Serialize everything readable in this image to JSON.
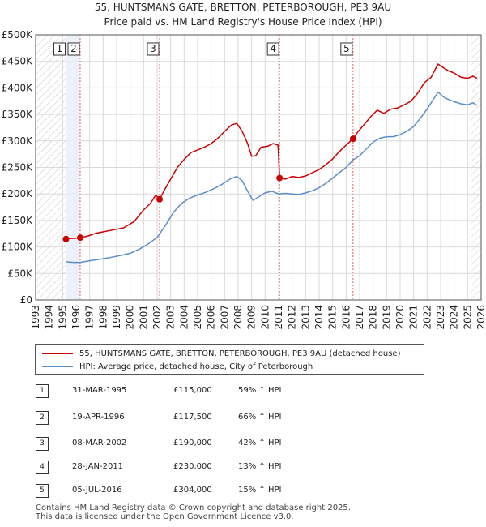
{
  "header": {
    "title": "55, HUNTSMANS GATE, BRETTON, PETERBOROUGH, PE3 9AU",
    "subtitle": "Price paid vs. HM Land Registry's House Price Index (HPI)"
  },
  "chart_data": {
    "type": "line",
    "title": "Price paid vs. HM Land Registry's House Price Index (HPI)",
    "xlim": [
      1993,
      2026
    ],
    "ylim": [
      0,
      500000
    ],
    "x_ticks": [
      1993,
      1994,
      1995,
      1996,
      1997,
      1998,
      1999,
      2000,
      2001,
      2002,
      2003,
      2004,
      2005,
      2006,
      2007,
      2008,
      2009,
      2010,
      2011,
      2012,
      2013,
      2014,
      2015,
      2016,
      2017,
      2018,
      2019,
      2020,
      2021,
      2022,
      2023,
      2024,
      2025,
      2026
    ],
    "y_ticks": [
      0,
      50000,
      100000,
      150000,
      200000,
      250000,
      300000,
      350000,
      400000,
      450000,
      500000
    ],
    "y_tick_labels": [
      "£0",
      "£50K",
      "£100K",
      "£150K",
      "£200K",
      "£250K",
      "£300K",
      "£350K",
      "£400K",
      "£450K",
      "£500K"
    ],
    "hatch_ranges": [
      [
        1993,
        1995.2
      ],
      [
        2025.2,
        2026
      ]
    ],
    "shade_range": [
      1995.25,
      1996.3
    ],
    "series": [
      {
        "name": "55, HUNTSMANS GATE, BRETTON, PETERBOROUGH, PE3 9AU (detached house)",
        "color": "#cc0000",
        "points": [
          [
            1995.25,
            115000
          ],
          [
            1995.6,
            116000
          ],
          [
            1996.0,
            116500
          ],
          [
            1996.3,
            117500
          ],
          [
            1996.8,
            120000
          ],
          [
            1997.5,
            126000
          ],
          [
            1998.5,
            131000
          ],
          [
            1999.5,
            136000
          ],
          [
            2000.3,
            148000
          ],
          [
            2001.0,
            170000
          ],
          [
            2001.5,
            182000
          ],
          [
            2001.9,
            198000
          ],
          [
            2002.18,
            190000
          ],
          [
            2002.6,
            210000
          ],
          [
            2003.0,
            228000
          ],
          [
            2003.5,
            250000
          ],
          [
            2004.0,
            265000
          ],
          [
            2004.5,
            278000
          ],
          [
            2005.0,
            283000
          ],
          [
            2005.5,
            288000
          ],
          [
            2006.0,
            295000
          ],
          [
            2006.5,
            305000
          ],
          [
            2007.0,
            318000
          ],
          [
            2007.5,
            330000
          ],
          [
            2007.9,
            333000
          ],
          [
            2008.3,
            318000
          ],
          [
            2008.7,
            295000
          ],
          [
            2009.0,
            271000
          ],
          [
            2009.3,
            272000
          ],
          [
            2009.7,
            288000
          ],
          [
            2010.2,
            290000
          ],
          [
            2010.6,
            295000
          ],
          [
            2010.95,
            292000
          ],
          [
            2011.0,
            270000
          ],
          [
            2011.07,
            230000
          ],
          [
            2011.5,
            228000
          ],
          [
            2012.0,
            233000
          ],
          [
            2012.5,
            231000
          ],
          [
            2013.0,
            234000
          ],
          [
            2013.5,
            240000
          ],
          [
            2014.0,
            246000
          ],
          [
            2014.5,
            255000
          ],
          [
            2015.0,
            266000
          ],
          [
            2015.5,
            280000
          ],
          [
            2016.0,
            292000
          ],
          [
            2016.51,
            304000
          ],
          [
            2016.9,
            318000
          ],
          [
            2017.3,
            330000
          ],
          [
            2017.8,
            345000
          ],
          [
            2018.3,
            358000
          ],
          [
            2018.8,
            352000
          ],
          [
            2019.3,
            360000
          ],
          [
            2019.8,
            362000
          ],
          [
            2020.3,
            368000
          ],
          [
            2020.8,
            375000
          ],
          [
            2021.3,
            390000
          ],
          [
            2021.8,
            410000
          ],
          [
            2022.3,
            420000
          ],
          [
            2022.8,
            445000
          ],
          [
            2023.2,
            438000
          ],
          [
            2023.6,
            432000
          ],
          [
            2024.0,
            428000
          ],
          [
            2024.5,
            420000
          ],
          [
            2025.0,
            418000
          ],
          [
            2025.4,
            422000
          ],
          [
            2025.7,
            418000
          ]
        ]
      },
      {
        "name": "HPI: Average price, detached house, City of Peterborough",
        "color": "#5b8ec9",
        "points": [
          [
            1995.25,
            72000
          ],
          [
            1995.8,
            71000
          ],
          [
            1996.3,
            71000
          ],
          [
            1997.0,
            74000
          ],
          [
            1997.8,
            77000
          ],
          [
            1998.5,
            80000
          ],
          [
            1999.3,
            84000
          ],
          [
            2000.0,
            88000
          ],
          [
            2000.7,
            96000
          ],
          [
            2001.3,
            105000
          ],
          [
            2002.0,
            118000
          ],
          [
            2002.6,
            140000
          ],
          [
            2003.2,
            165000
          ],
          [
            2003.8,
            182000
          ],
          [
            2004.4,
            192000
          ],
          [
            2005.0,
            198000
          ],
          [
            2005.6,
            203000
          ],
          [
            2006.2,
            210000
          ],
          [
            2006.8,
            218000
          ],
          [
            2007.4,
            228000
          ],
          [
            2007.9,
            233000
          ],
          [
            2008.3,
            225000
          ],
          [
            2008.7,
            205000
          ],
          [
            2009.1,
            188000
          ],
          [
            2009.5,
            194000
          ],
          [
            2010.0,
            202000
          ],
          [
            2010.5,
            205000
          ],
          [
            2011.0,
            200000
          ],
          [
            2011.5,
            201000
          ],
          [
            2012.0,
            200000
          ],
          [
            2012.5,
            199000
          ],
          [
            2013.0,
            202000
          ],
          [
            2013.5,
            206000
          ],
          [
            2014.0,
            212000
          ],
          [
            2014.5,
            220000
          ],
          [
            2015.0,
            230000
          ],
          [
            2015.5,
            240000
          ],
          [
            2016.0,
            250000
          ],
          [
            2016.51,
            264000
          ],
          [
            2017.0,
            272000
          ],
          [
            2017.5,
            285000
          ],
          [
            2018.0,
            298000
          ],
          [
            2018.5,
            305000
          ],
          [
            2019.0,
            308000
          ],
          [
            2019.5,
            308000
          ],
          [
            2020.0,
            312000
          ],
          [
            2020.5,
            318000
          ],
          [
            2021.0,
            327000
          ],
          [
            2021.5,
            343000
          ],
          [
            2022.0,
            360000
          ],
          [
            2022.5,
            380000
          ],
          [
            2022.8,
            392000
          ],
          [
            2023.2,
            383000
          ],
          [
            2023.6,
            378000
          ],
          [
            2024.0,
            374000
          ],
          [
            2024.5,
            370000
          ],
          [
            2025.0,
            368000
          ],
          [
            2025.4,
            372000
          ],
          [
            2025.7,
            367000
          ]
        ]
      }
    ],
    "sales": [
      {
        "label": "1",
        "x": 1995.25,
        "value": 115000
      },
      {
        "label": "2",
        "x": 1996.3,
        "value": 117500
      },
      {
        "label": "3",
        "x": 2002.18,
        "value": 190000
      },
      {
        "label": "4",
        "x": 2011.07,
        "value": 230000
      },
      {
        "label": "5",
        "x": 2016.51,
        "value": 304000
      }
    ]
  },
  "legend": {
    "line1": "55, HUNTSMANS GATE, BRETTON, PETERBOROUGH, PE3 9AU (detached house)",
    "line2": "HPI: Average price, detached house, City of Peterborough"
  },
  "sales_table": [
    {
      "label": "1",
      "date": "31-MAR-1995",
      "price": "£115,000",
      "hpi": "59% ↑ HPI"
    },
    {
      "label": "2",
      "date": "19-APR-1996",
      "price": "£117,500",
      "hpi": "66% ↑ HPI"
    },
    {
      "label": "3",
      "date": "08-MAR-2002",
      "price": "£190,000",
      "hpi": "42% ↑ HPI"
    },
    {
      "label": "4",
      "date": "28-JAN-2011",
      "price": "£230,000",
      "hpi": "13% ↑ HPI"
    },
    {
      "label": "5",
      "date": "05-JUL-2016",
      "price": "£304,000",
      "hpi": "15% ↑ HPI"
    }
  ],
  "footer": {
    "line1": "Contains HM Land Registry data © Crown copyright and database right 2025.",
    "line2": "This data is licensed under the Open Government Licence v3.0."
  },
  "colors": {
    "property_line": "#cc0000",
    "hpi_line": "#5b8ec9",
    "grid": "#d9d9d9",
    "plot_bg": "#ffffff",
    "shade": "#e8eef8",
    "vline": "#e06060"
  }
}
